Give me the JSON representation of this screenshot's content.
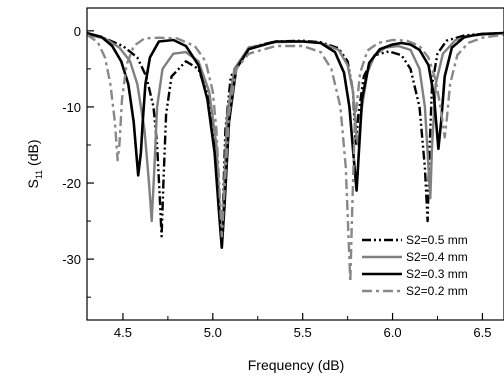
{
  "chart_data": {
    "type": "line",
    "title": "",
    "xlabel": "Frequency (dB)",
    "ylabel_main": "S",
    "ylabel_sub": "11",
    "ylabel_unit": " (dB)",
    "xlim": [
      4.3,
      6.62
    ],
    "ylim": [
      -38,
      3
    ],
    "xticks": [
      4.5,
      5.0,
      5.5,
      6.0,
      6.5
    ],
    "xtick_labels": [
      "4.5",
      "5.0",
      "5.5",
      "6.0",
      "6.5"
    ],
    "yticks": [
      0,
      -10,
      -20,
      -30
    ],
    "ytick_labels": [
      "0",
      "-10",
      "-20",
      "-30"
    ],
    "grid": false,
    "legend_position": "bottom-right",
    "series": [
      {
        "name": "S2=0.5 mm",
        "color": "#000000",
        "dash": "dash-dot-dot",
        "width": 2.4,
        "x": [
          4.3,
          4.4,
          4.5,
          4.58,
          4.63,
          4.67,
          4.69,
          4.705,
          4.715,
          4.725,
          4.74,
          4.77,
          4.85,
          4.92,
          4.98,
          5.02,
          5.045,
          5.055,
          5.07,
          5.1,
          5.2,
          5.35,
          5.5,
          5.6,
          5.7,
          5.75,
          5.78,
          5.795,
          5.81,
          5.84,
          5.9,
          5.98,
          6.05,
          6.1,
          6.15,
          6.18,
          6.195,
          6.205,
          6.22,
          6.25,
          6.3,
          6.4,
          6.5,
          6.62
        ],
        "y": [
          -0.5,
          -1.0,
          -2.0,
          -3.5,
          -6.0,
          -10.0,
          -15.0,
          -22.0,
          -27.0,
          -20.0,
          -11.0,
          -6.0,
          -4.0,
          -5.0,
          -9.0,
          -16.0,
          -27.0,
          -24.0,
          -13.0,
          -6.0,
          -2.2,
          -1.4,
          -1.3,
          -1.5,
          -2.3,
          -4.0,
          -8.0,
          -15.0,
          -11.0,
          -6.0,
          -3.2,
          -2.7,
          -3.2,
          -5.0,
          -10.0,
          -18.0,
          -25.0,
          -16.0,
          -7.0,
          -3.0,
          -1.3,
          -0.6,
          -0.4,
          -0.3
        ]
      },
      {
        "name": "S2=0.4 mm",
        "color": "#808080",
        "dash": "solid",
        "width": 2.4,
        "x": [
          4.3,
          4.4,
          4.48,
          4.54,
          4.58,
          4.62,
          4.645,
          4.66,
          4.675,
          4.69,
          4.72,
          4.78,
          4.85,
          4.92,
          4.98,
          5.02,
          5.04,
          5.05,
          5.06,
          5.08,
          5.12,
          5.2,
          5.35,
          5.5,
          5.6,
          5.7,
          5.75,
          5.78,
          5.8,
          5.81,
          5.83,
          5.86,
          5.9,
          5.96,
          6.03,
          6.1,
          6.15,
          6.18,
          6.2,
          6.21,
          6.22,
          6.24,
          6.28,
          6.35,
          6.45,
          6.55,
          6.62
        ],
        "y": [
          -0.5,
          -1.0,
          -2.2,
          -4.0,
          -7.0,
          -13.0,
          -20.0,
          -25.0,
          -18.0,
          -10.0,
          -5.0,
          -3.0,
          -2.8,
          -4.0,
          -8.0,
          -15.0,
          -24.0,
          -28.5,
          -22.0,
          -11.0,
          -5.0,
          -2.2,
          -1.5,
          -1.4,
          -1.6,
          -2.5,
          -4.5,
          -8.0,
          -14.0,
          -15.0,
          -10.0,
          -5.5,
          -3.2,
          -2.2,
          -2.0,
          -2.5,
          -5.0,
          -10.0,
          -18.0,
          -22.0,
          -15.0,
          -7.0,
          -3.0,
          -1.2,
          -0.6,
          -0.4,
          -0.3
        ]
      },
      {
        "name": "S2=0.3 mm",
        "color": "#000000",
        "dash": "solid",
        "width": 2.6,
        "x": [
          4.3,
          4.38,
          4.44,
          4.49,
          4.53,
          4.56,
          4.585,
          4.6,
          4.61,
          4.625,
          4.65,
          4.7,
          4.78,
          4.85,
          4.92,
          4.97,
          5.01,
          5.035,
          5.05,
          5.065,
          5.09,
          5.13,
          5.2,
          5.35,
          5.5,
          5.6,
          5.68,
          5.73,
          5.76,
          5.785,
          5.8,
          5.81,
          5.83,
          5.87,
          5.93,
          6.0,
          6.05,
          6.1,
          6.15,
          6.2,
          6.23,
          6.255,
          6.27,
          6.29,
          6.33,
          6.4,
          6.5,
          6.62
        ],
        "y": [
          -0.3,
          -0.8,
          -2.0,
          -4.0,
          -7.0,
          -12.0,
          -19.0,
          -16.0,
          -12.0,
          -7.0,
          -3.5,
          -1.4,
          -1.2,
          -2.0,
          -4.5,
          -9.0,
          -16.0,
          -24.0,
          -28.5,
          -23.0,
          -12.0,
          -5.0,
          -2.4,
          -1.4,
          -1.4,
          -1.6,
          -2.8,
          -5.5,
          -10.0,
          -17.0,
          -21.0,
          -17.0,
          -9.0,
          -4.2,
          -2.4,
          -1.8,
          -1.6,
          -1.8,
          -2.5,
          -4.5,
          -8.5,
          -15.5,
          -12.0,
          -6.0,
          -2.2,
          -0.8,
          -0.4,
          -0.3
        ]
      },
      {
        "name": "S2=0.2 mm",
        "color": "#888888",
        "dash": "dash-dot",
        "width": 2.4,
        "x": [
          4.3,
          4.36,
          4.4,
          4.43,
          4.455,
          4.47,
          4.48,
          4.495,
          4.52,
          4.56,
          4.62,
          4.7,
          4.8,
          4.9,
          4.96,
          5.0,
          5.02,
          5.035,
          5.05,
          5.065,
          5.09,
          5.13,
          5.2,
          5.35,
          5.5,
          5.6,
          5.66,
          5.71,
          5.74,
          5.755,
          5.765,
          5.775,
          5.79,
          5.82,
          5.86,
          5.92,
          6.0,
          6.08,
          6.15,
          6.2,
          6.24,
          6.27,
          6.29,
          6.3,
          6.32,
          6.36,
          6.42,
          6.5,
          6.62
        ],
        "y": [
          -0.5,
          -1.5,
          -3.5,
          -7.0,
          -12.0,
          -17.0,
          -15.0,
          -9.0,
          -4.5,
          -2.0,
          -1.0,
          -0.9,
          -1.0,
          -2.0,
          -4.0,
          -8.0,
          -13.0,
          -20.0,
          -27.0,
          -21.0,
          -11.0,
          -5.0,
          -3.0,
          -2.0,
          -2.0,
          -2.8,
          -5.0,
          -10.0,
          -18.0,
          -27.0,
          -33.0,
          -24.0,
          -12.0,
          -5.5,
          -2.6,
          -1.6,
          -1.2,
          -1.3,
          -2.0,
          -3.5,
          -6.5,
          -10.5,
          -14.0,
          -12.0,
          -7.0,
          -3.2,
          -1.6,
          -0.9,
          -0.5
        ]
      }
    ]
  }
}
